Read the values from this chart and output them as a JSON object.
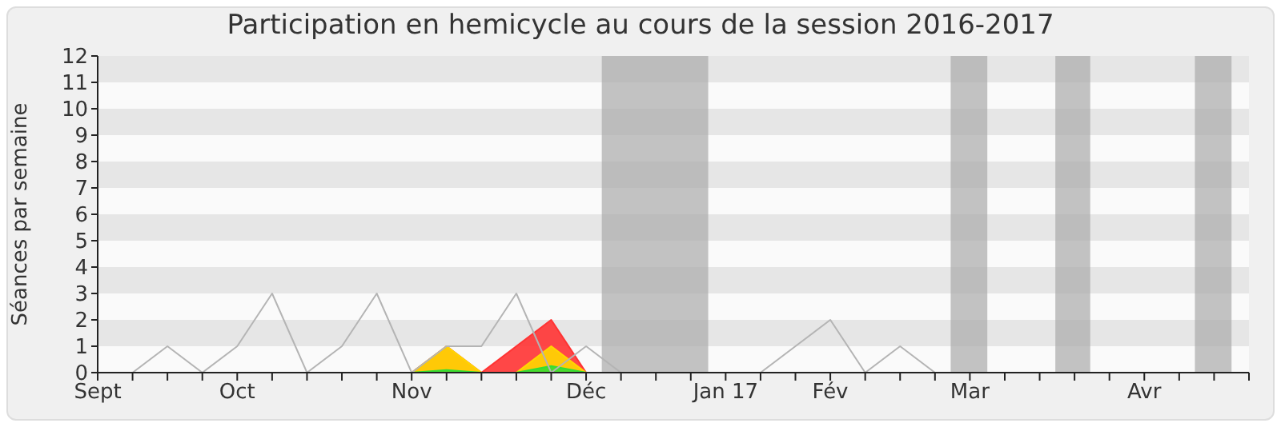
{
  "chart_data": {
    "type": "line",
    "title": "Participation en hemicycle au cours de la session 2016-2017",
    "ylabel": "Séances par semaine",
    "categories": [
      "Sept",
      null,
      null,
      null,
      "Oct",
      null,
      null,
      null,
      null,
      "Nov",
      null,
      null,
      null,
      null,
      "Déc",
      null,
      null,
      null,
      "Jan 17",
      null,
      null,
      "Fév",
      null,
      null,
      null,
      "Mar",
      null,
      null,
      null,
      null,
      "Avr",
      null,
      null,
      null
    ],
    "ylim": [
      0,
      12
    ],
    "yticks": [
      0,
      1,
      2,
      3,
      4,
      5,
      6,
      7,
      8,
      9,
      10,
      11,
      12
    ],
    "legend": false,
    "marker": "none",
    "series": [
      {
        "color": "#b4b4b4",
        "values": [
          0,
          0,
          1,
          0,
          1,
          3,
          0,
          1,
          3,
          0,
          1,
          1,
          3,
          0,
          1,
          0,
          0,
          0,
          0,
          0,
          1,
          2,
          0,
          1,
          0,
          0,
          0,
          0,
          0,
          0,
          0,
          0,
          0,
          0
        ]
      },
      {
        "type": "area",
        "color": "#ff3333",
        "values": [
          null,
          null,
          null,
          null,
          null,
          null,
          null,
          null,
          null,
          0,
          1,
          0,
          1,
          2,
          0,
          null,
          null,
          null,
          null,
          null,
          null,
          null,
          null,
          null,
          null,
          null,
          null,
          null,
          null,
          null,
          null,
          null,
          null,
          null
        ]
      },
      {
        "type": "area",
        "color": "#ffd700",
        "values": [
          null,
          null,
          null,
          null,
          null,
          null,
          null,
          null,
          null,
          0,
          1,
          0,
          0,
          1,
          0,
          null,
          null,
          null,
          null,
          null,
          null,
          null,
          null,
          null,
          null,
          null,
          null,
          null,
          null,
          null,
          null,
          null,
          null,
          null
        ]
      },
      {
        "type": "area",
        "color": "#33dd33",
        "values": [
          null,
          null,
          null,
          null,
          null,
          null,
          null,
          null,
          null,
          0,
          0.1,
          0,
          0,
          0.25,
          0,
          null,
          null,
          null,
          null,
          null,
          null,
          null,
          null,
          null,
          null,
          null,
          null,
          null,
          null,
          null,
          null,
          null,
          null,
          null
        ]
      }
    ]
  }
}
